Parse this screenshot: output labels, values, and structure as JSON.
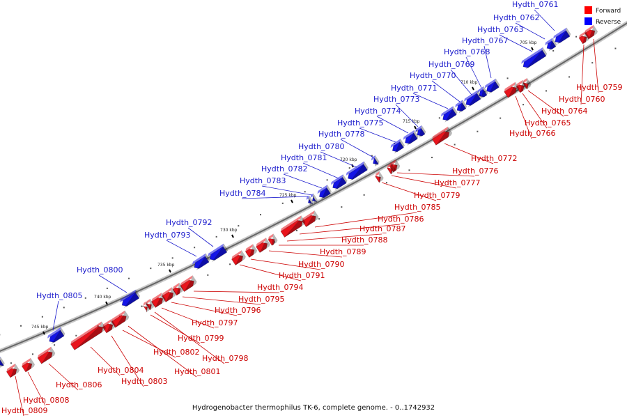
{
  "title": "Hydrogenobacter thermophilus TK-6, complete genome. - 0..1742932",
  "legend": [
    {
      "key": "forward",
      "label": "Forward",
      "color": "#ff0000"
    },
    {
      "key": "reverse",
      "label": "Reverse",
      "color": "#0000ff"
    }
  ],
  "colors": {
    "forward": "#e8141c",
    "reverse": "#1414e6",
    "forward_label": "#cc0000",
    "reverse_label": "#1a1acc",
    "backbone": "#666666"
  },
  "ticks": [
    "705 kbp",
    "710 kbp",
    "715 kbp",
    "720 kbp",
    "725 kbp",
    "730 kbp",
    "735 kbp",
    "740 kbp",
    "745 kbp"
  ],
  "genes_reverse": [
    "Hydth_0761",
    "Hydth_0762",
    "Hydth_0763",
    "Hydth_0767",
    "Hydth_0768",
    "Hydth_0769",
    "Hydth_0770",
    "Hydth_0771",
    "Hydth_0773",
    "Hydth_0774",
    "Hydth_0775",
    "Hydth_0778",
    "Hydth_0780",
    "Hydth_0781",
    "Hydth_0782",
    "Hydth_0783",
    "Hydth_0784",
    "Hydth_0792",
    "Hydth_0793",
    "Hydth_0800",
    "Hydth_0805"
  ],
  "genes_forward": [
    "Hydth_0759",
    "Hydth_0760",
    "Hydth_0764",
    "Hydth_0765",
    "Hydth_0766",
    "Hydth_0772",
    "Hydth_0776",
    "Hydth_0777",
    "Hydth_0779",
    "Hydth_0785",
    "Hydth_0786",
    "Hydth_0787",
    "Hydth_0788",
    "Hydth_0789",
    "Hydth_0790",
    "Hydth_0791",
    "Hydth_0794",
    "Hydth_0795",
    "Hydth_0796",
    "Hydth_0797",
    "Hydth_0798",
    "Hydth_0799",
    "Hydth_0801",
    "Hydth_0802",
    "Hydth_0803",
    "Hydth_0804",
    "Hydth_0806",
    "Hydth_0808",
    "Hydth_0809"
  ]
}
